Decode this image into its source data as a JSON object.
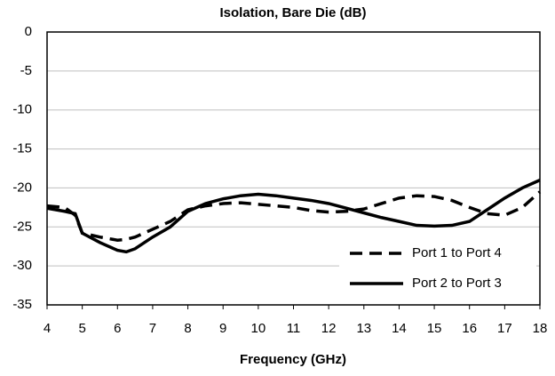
{
  "chart_data": {
    "type": "line",
    "title": "Isolation, Bare Die (dB)",
    "x_label": "Frequency (GHz)",
    "x": [
      4,
      4.5,
      4.8,
      5,
      5.5,
      6,
      6.25,
      6.5,
      7,
      7.5,
      8,
      8.5,
      9,
      9.5,
      10,
      10.5,
      11,
      11.5,
      12,
      12.5,
      13,
      13.5,
      14,
      14.5,
      15,
      15.5,
      16,
      16.5,
      17,
      17.5,
      18
    ],
    "series": [
      {
        "name": "Port 1 to Port 4",
        "color": "#000000",
        "dash": true,
        "values": [
          -22.3,
          -22.5,
          -23.5,
          -25.8,
          -26.3,
          -26.7,
          -26.6,
          -26.3,
          -25.3,
          -24.3,
          -22.8,
          -22.3,
          -22.0,
          -21.9,
          -22.1,
          -22.3,
          -22.5,
          -22.9,
          -23.1,
          -23.0,
          -22.7,
          -22.0,
          -21.3,
          -21.0,
          -21.1,
          -21.6,
          -22.5,
          -23.3,
          -23.5,
          -22.5,
          -20.5
        ]
      },
      {
        "name": "Port 2 to Port 3",
        "color": "#000000",
        "dash": false,
        "values": [
          -22.6,
          -23.0,
          -23.3,
          -25.8,
          -27.0,
          -28.0,
          -28.2,
          -27.8,
          -26.3,
          -25.0,
          -23.0,
          -22.0,
          -21.4,
          -21.0,
          -20.8,
          -21.0,
          -21.3,
          -21.6,
          -22.0,
          -22.6,
          -23.2,
          -23.8,
          -24.3,
          -24.8,
          -24.9,
          -24.8,
          -24.3,
          -22.8,
          -21.3,
          -20.0,
          -19.0
        ]
      }
    ],
    "xlim": [
      4,
      18
    ],
    "xticks": [
      4,
      5,
      6,
      7,
      8,
      9,
      10,
      11,
      12,
      13,
      14,
      15,
      16,
      17,
      18
    ],
    "ylim": [
      -35,
      0
    ],
    "yticks": [
      -35,
      -30,
      -25,
      -20,
      -15,
      -10,
      -5,
      0
    ],
    "grid": true,
    "legend": "lower right"
  }
}
